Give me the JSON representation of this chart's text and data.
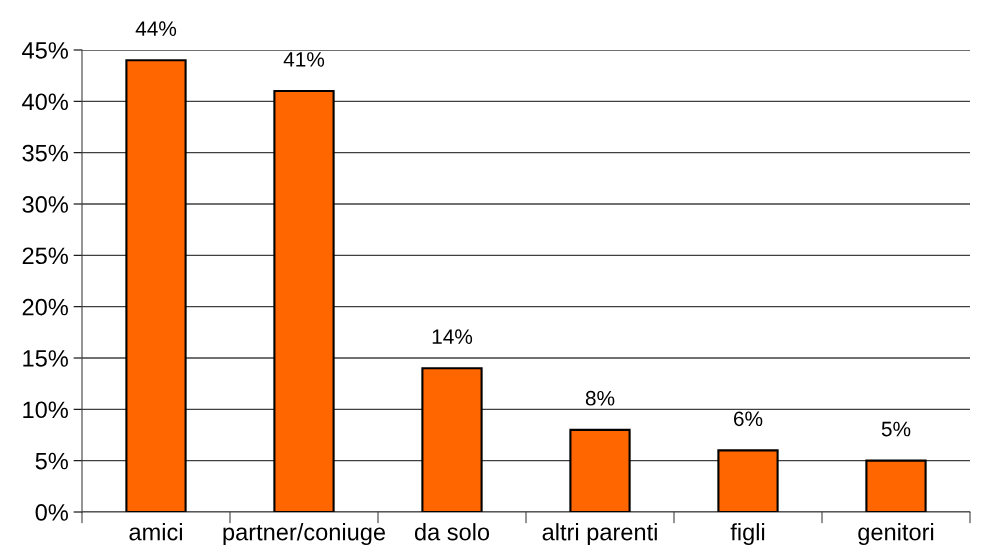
{
  "chart_data": {
    "type": "bar",
    "categories": [
      "amici",
      "partner/coniuge",
      "da solo",
      "altri parenti",
      "figli",
      "genitori"
    ],
    "values": [
      44,
      41,
      14,
      8,
      6,
      5
    ],
    "color": "#ff6600",
    "value_labels": [
      "44%",
      "41%",
      "14%",
      "8%",
      "6%",
      "5%"
    ],
    "ylim": [
      0,
      45
    ],
    "yticks": [
      {
        "value": 0,
        "label": "0%"
      },
      {
        "value": 5,
        "label": "5%"
      },
      {
        "value": 10,
        "label": "10%"
      },
      {
        "value": 15,
        "label": "15%"
      },
      {
        "value": 20,
        "label": "20%"
      },
      {
        "value": 25,
        "label": "25%"
      },
      {
        "value": 30,
        "label": "30%"
      },
      {
        "value": 35,
        "label": "35%"
      },
      {
        "value": 40,
        "label": "40%"
      },
      {
        "value": 45,
        "label": "45%"
      }
    ],
    "grid": "y",
    "legend": false
  }
}
